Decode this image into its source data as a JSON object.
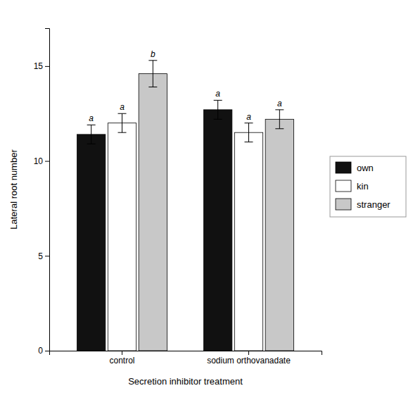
{
  "chart_data": {
    "type": "bar",
    "categories": [
      "control",
      "sodium orthovanadate"
    ],
    "series": [
      {
        "name": "own",
        "color": "#111111",
        "values": [
          11.4,
          12.7
        ],
        "errors": [
          0.5,
          0.5
        ],
        "annotations": [
          "a",
          "a"
        ]
      },
      {
        "name": "kin",
        "color": "#ffffff",
        "values": [
          12.0,
          11.5
        ],
        "errors": [
          0.5,
          0.5
        ],
        "annotations": [
          "a",
          "a"
        ]
      },
      {
        "name": "stranger",
        "color": "#c8c8c8",
        "values": [
          14.6,
          12.2
        ],
        "errors": [
          0.7,
          0.5
        ],
        "annotations": [
          "b",
          "a"
        ]
      }
    ],
    "xlabel": "Secretion inhibitor treatment",
    "ylabel": "Lateral root number",
    "ylim": [
      0,
      17
    ],
    "yticks": [
      0,
      5,
      10,
      15
    ],
    "grid": false,
    "legend": "right"
  }
}
